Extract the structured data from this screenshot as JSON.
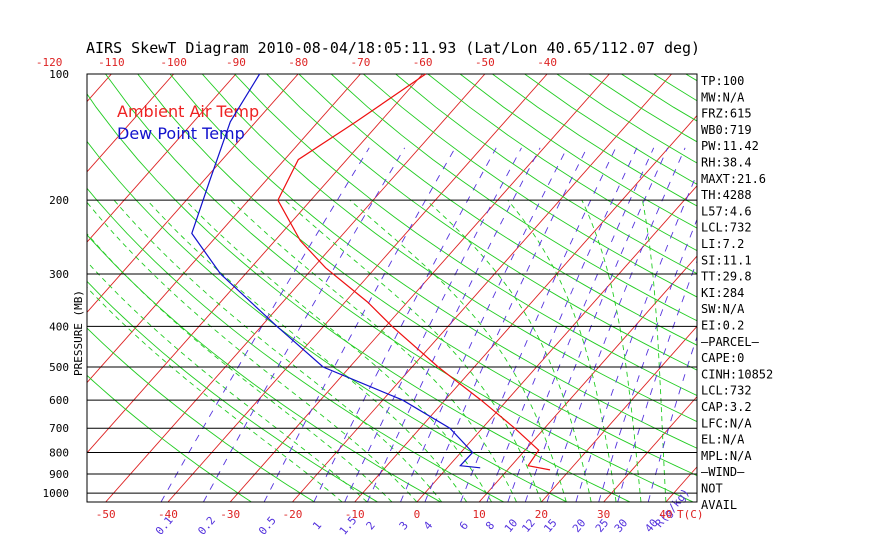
{
  "chart_data": {
    "type": "line",
    "title": "AIRS SkewT Diagram 2010-08-04/18:05:11.93 (Lat/Lon 40.65/112.07 deg)",
    "ylabel": "PRESSURE (MB)",
    "xlabel": "T(C)",
    "mixing_ratio_unit": "R(g/kg)",
    "pressure_ticks": [
      100,
      200,
      300,
      400,
      500,
      600,
      700,
      800,
      900,
      1000
    ],
    "pressure_range": [
      100,
      1050
    ],
    "top_temp_ticks": [
      -120,
      -110,
      -100,
      -90,
      -80,
      -70,
      -60,
      -50,
      -40
    ],
    "bottom_temp_ticks": [
      -50,
      -40,
      -30,
      -20,
      -10,
      0,
      10,
      20,
      30,
      40
    ],
    "temp_range_at_1050": [
      -53,
      45
    ],
    "mixing_ratio_labels": [
      "0.1",
      "0.2",
      "0.5",
      "1",
      "1.5",
      "2",
      "3",
      "4",
      "6",
      "8",
      "10",
      "12",
      "15",
      "20",
      "25",
      "30",
      "40"
    ],
    "mixing_ratio_values": [
      0.1,
      0.2,
      0.5,
      1,
      1.5,
      2,
      3,
      4,
      6,
      8,
      10,
      12,
      15,
      20,
      25,
      30,
      40
    ],
    "legend": [
      "Ambient Air Temp",
      "Dew Point Temp"
    ],
    "colors": {
      "temperature": "#ee1111",
      "dewpoint": "#1111cc",
      "isotherm": "#dd2222",
      "dry_adiabat": "#22cc22",
      "moist_adiabat": "#22cc22",
      "mixing_ratio": "#5533dd",
      "axis": "#000000"
    },
    "series": [
      {
        "name": "Ambient Air Temp",
        "pressure": [
          100,
          130,
          160,
          200,
          250,
          290,
          350,
          400,
          500,
          600,
          700,
          790,
          860,
          880
        ],
        "values": [
          -59.5,
          -63.9,
          -67.8,
          -65.3,
          -55.9,
          -48.0,
          -36.4,
          -29.0,
          -15.8,
          -4.2,
          5.2,
          12.2,
          12.7,
          16.8
        ]
      },
      {
        "name": "Dew Point Temp",
        "pressure": [
          100,
          130,
          180,
          240,
          300,
          400,
          500,
          600,
          700,
          800,
          860,
          870
        ],
        "values": [
          -86.2,
          -84.1,
          -79.0,
          -74.4,
          -64.0,
          -47.5,
          -34.3,
          -16.8,
          -5.2,
          1.9,
          1.8,
          5.3
        ]
      }
    ],
    "indices": [
      "TP:100",
      "MW:N/A",
      "FRZ:615",
      "WB0:719",
      "PW:11.42",
      "RH:38.4",
      "MAXT:21.6",
      "TH:4288",
      "L57:4.6",
      "LCL:732",
      "LI:7.2",
      "SI:11.1",
      "TT:29.8",
      "KI:284",
      "SW:N/A",
      "EI:0.2",
      "–PARCEL–",
      "CAPE:0",
      "CINH:10852",
      "LCL:732",
      "CAP:3.2",
      "LFC:N/A",
      "EL:N/A",
      "MPL:N/A",
      "–WIND–",
      "NOT",
      "AVAIL"
    ]
  }
}
